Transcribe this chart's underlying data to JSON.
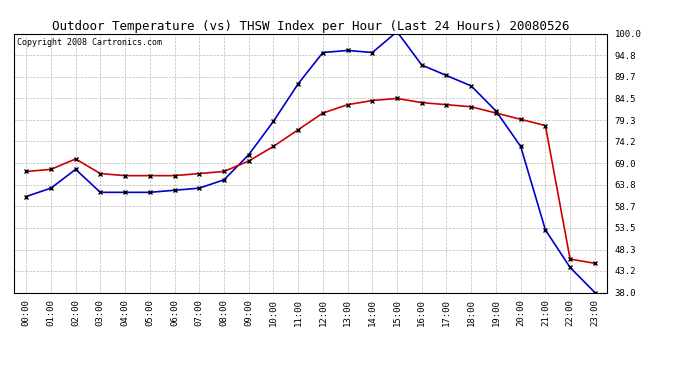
{
  "title": "Outdoor Temperature (vs) THSW Index per Hour (Last 24 Hours) 20080526",
  "copyright": "Copyright 2008 Cartronics.com",
  "hours": [
    0,
    1,
    2,
    3,
    4,
    5,
    6,
    7,
    8,
    9,
    10,
    11,
    12,
    13,
    14,
    15,
    16,
    17,
    18,
    19,
    20,
    21,
    22,
    23
  ],
  "temp": [
    67.0,
    67.5,
    70.0,
    66.5,
    66.0,
    66.0,
    66.0,
    66.5,
    67.0,
    69.5,
    73.0,
    77.0,
    81.0,
    83.0,
    84.0,
    84.5,
    83.5,
    83.0,
    82.5,
    81.0,
    79.5,
    78.0,
    46.0,
    45.0
  ],
  "thsw": [
    61.0,
    63.0,
    67.5,
    62.0,
    62.0,
    62.0,
    62.5,
    63.0,
    65.0,
    71.0,
    79.0,
    88.0,
    95.5,
    96.0,
    95.5,
    100.5,
    92.5,
    90.0,
    87.5,
    81.5,
    73.0,
    53.0,
    44.0,
    38.0
  ],
  "temp_color": "#cc0000",
  "thsw_color": "#0000cc",
  "marker": "x",
  "marker_color": "black",
  "marker_size": 3,
  "marker_linewidth": 1.0,
  "line_width": 1.2,
  "ylim_min": 38.0,
  "ylim_max": 100.0,
  "yticks": [
    38.0,
    43.2,
    48.3,
    53.5,
    58.7,
    63.8,
    69.0,
    74.2,
    79.3,
    84.5,
    89.7,
    94.8,
    100.0
  ],
  "background_color": "#ffffff",
  "plot_bg_color": "#ffffff",
  "grid_color": "#bbbbbb",
  "title_fontsize": 9,
  "tick_fontsize": 6.5,
  "copyright_fontsize": 6
}
